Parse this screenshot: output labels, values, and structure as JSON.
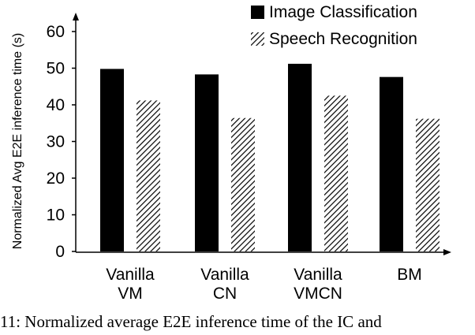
{
  "chart_data": {
    "type": "bar",
    "categories": [
      [
        "Vanilla",
        "VM"
      ],
      [
        "Vanilla",
        "CN"
      ],
      [
        "Vanilla",
        "VMCN"
      ],
      [
        "BM"
      ]
    ],
    "series": [
      {
        "name": "Image Classification",
        "values": [
          49.8,
          48.3,
          51.2,
          47.6
        ],
        "fill": "solid",
        "color": "#000000"
      },
      {
        "name": "Speech Recognition",
        "values": [
          41.2,
          36.4,
          42.5,
          36.2
        ],
        "fill": "diagonal-hatch",
        "color": "#000000"
      }
    ],
    "xlabel": "",
    "ylabel": "Normalized Avg E2E inference time (s)",
    "ylim": [
      0,
      60
    ],
    "yticks": [
      0,
      10,
      20,
      30,
      40,
      50,
      60
    ],
    "grid": false,
    "legend_position": "top-right",
    "caption": "11: Normalized average E2E inference time of the IC and"
  }
}
